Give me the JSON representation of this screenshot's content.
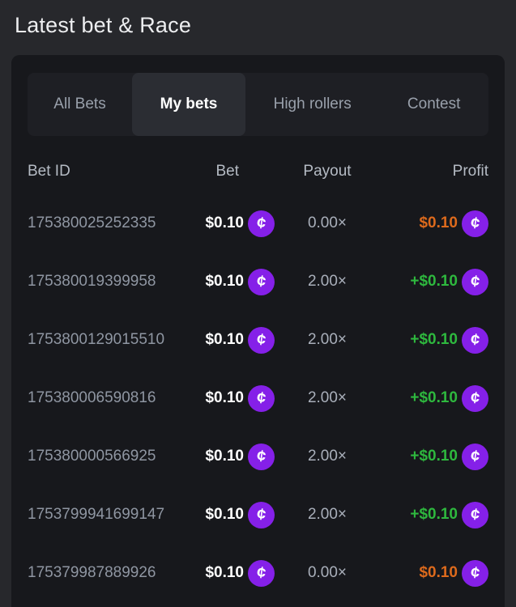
{
  "page": {
    "title": "Latest bet & Race"
  },
  "tabs": [
    {
      "label": "All Bets",
      "active": false
    },
    {
      "label": "My bets",
      "active": true
    },
    {
      "label": "High rollers",
      "active": false
    },
    {
      "label": "Contest",
      "active": false
    }
  ],
  "table": {
    "columns": [
      "Bet ID",
      "Bet",
      "Payout",
      "Profit"
    ],
    "rows": [
      {
        "id": "175380025252335",
        "bet": "$0.10",
        "payout": "0.00×",
        "profit": "$0.10",
        "result": "loss"
      },
      {
        "id": "175380019399958",
        "bet": "$0.10",
        "payout": "2.00×",
        "profit": "+$0.10",
        "result": "win"
      },
      {
        "id": "1753800129015510",
        "bet": "$0.10",
        "payout": "2.00×",
        "profit": "+$0.10",
        "result": "win"
      },
      {
        "id": "175380006590816",
        "bet": "$0.10",
        "payout": "2.00×",
        "profit": "+$0.10",
        "result": "win"
      },
      {
        "id": "175380000566925",
        "bet": "$0.10",
        "payout": "2.00×",
        "profit": "+$0.10",
        "result": "win"
      },
      {
        "id": "1753799941699147",
        "bet": "$0.10",
        "payout": "2.00×",
        "profit": "+$0.10",
        "result": "win"
      },
      {
        "id": "175379987889926",
        "bet": "$0.10",
        "payout": "0.00×",
        "profit": "$0.10",
        "result": "loss"
      }
    ]
  },
  "icons": {
    "coin_glyph": "¢",
    "coin_name": "coin-icon"
  },
  "colors": {
    "page_background": "#27282c",
    "panel_background": "#17181c",
    "tabbar_background": "#1e1f24",
    "active_tab_background": "#2b2d33",
    "accent_purple": "#8520e8",
    "profit_green": "#2eb83e",
    "loss_orange": "#dd6a1c"
  }
}
